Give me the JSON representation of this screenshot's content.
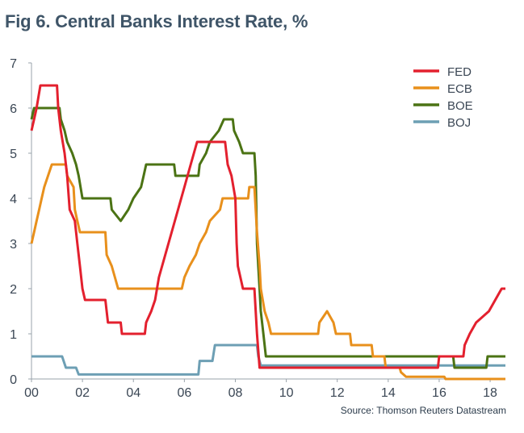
{
  "title": "Fig 6. Central Banks Interest Rate, %",
  "source": "Source: Thomson Reuters Datastream",
  "chart_data": {
    "type": "line",
    "title": "Fig 6. Central Banks Interest Rate, %",
    "xlabel": "",
    "ylabel": "",
    "xlim": [
      2000,
      2018.6
    ],
    "ylim": [
      0,
      7
    ],
    "x_ticks": [
      {
        "v": 2000,
        "label": "00"
      },
      {
        "v": 2002,
        "label": "02"
      },
      {
        "v": 2004,
        "label": "04"
      },
      {
        "v": 2006,
        "label": "06"
      },
      {
        "v": 2008,
        "label": "08"
      },
      {
        "v": 2010,
        "label": "10"
      },
      {
        "v": 2012,
        "label": "12"
      },
      {
        "v": 2014,
        "label": "14"
      },
      {
        "v": 2016,
        "label": "16"
      },
      {
        "v": 2018,
        "label": "18"
      }
    ],
    "y_ticks": [
      0,
      1,
      2,
      3,
      4,
      5,
      6,
      7
    ],
    "grid": false,
    "legend_position": "top-right",
    "series": [
      {
        "name": "FED",
        "color": "#e3202e",
        "points": [
          [
            2000.0,
            5.5
          ],
          [
            2000.1,
            5.75
          ],
          [
            2000.2,
            6.0
          ],
          [
            2000.35,
            6.5
          ],
          [
            2001.0,
            6.5
          ],
          [
            2001.05,
            6.0
          ],
          [
            2001.15,
            5.5
          ],
          [
            2001.3,
            5.0
          ],
          [
            2001.4,
            4.5
          ],
          [
            2001.5,
            3.75
          ],
          [
            2001.7,
            3.5
          ],
          [
            2001.8,
            3.0
          ],
          [
            2001.9,
            2.5
          ],
          [
            2002.0,
            2.0
          ],
          [
            2002.1,
            1.75
          ],
          [
            2002.9,
            1.75
          ],
          [
            2003.0,
            1.25
          ],
          [
            2003.5,
            1.25
          ],
          [
            2003.55,
            1.0
          ],
          [
            2004.45,
            1.0
          ],
          [
            2004.5,
            1.25
          ],
          [
            2004.7,
            1.5
          ],
          [
            2004.85,
            1.75
          ],
          [
            2005.0,
            2.25
          ],
          [
            2005.25,
            2.75
          ],
          [
            2005.5,
            3.25
          ],
          [
            2005.75,
            3.75
          ],
          [
            2006.0,
            4.25
          ],
          [
            2006.25,
            4.75
          ],
          [
            2006.5,
            5.25
          ],
          [
            2007.6,
            5.25
          ],
          [
            2007.7,
            4.75
          ],
          [
            2007.85,
            4.5
          ],
          [
            2008.0,
            4.0
          ],
          [
            2008.05,
            3.0
          ],
          [
            2008.1,
            2.5
          ],
          [
            2008.3,
            2.0
          ],
          [
            2008.75,
            2.0
          ],
          [
            2008.85,
            1.0
          ],
          [
            2008.95,
            0.25
          ],
          [
            2015.95,
            0.25
          ],
          [
            2016.0,
            0.5
          ],
          [
            2016.95,
            0.5
          ],
          [
            2017.0,
            0.75
          ],
          [
            2017.2,
            1.0
          ],
          [
            2017.45,
            1.25
          ],
          [
            2017.95,
            1.5
          ],
          [
            2018.2,
            1.75
          ],
          [
            2018.45,
            2.0
          ],
          [
            2018.6,
            2.0
          ]
        ]
      },
      {
        "name": "ECB",
        "color": "#e8901c",
        "points": [
          [
            2000.0,
            3.0
          ],
          [
            2000.1,
            3.25
          ],
          [
            2000.2,
            3.5
          ],
          [
            2000.3,
            3.75
          ],
          [
            2000.4,
            4.0
          ],
          [
            2000.5,
            4.25
          ],
          [
            2000.8,
            4.75
          ],
          [
            2001.35,
            4.75
          ],
          [
            2001.4,
            4.5
          ],
          [
            2001.65,
            4.25
          ],
          [
            2001.7,
            3.75
          ],
          [
            2001.8,
            3.5
          ],
          [
            2001.9,
            3.25
          ],
          [
            2002.9,
            3.25
          ],
          [
            2002.95,
            2.75
          ],
          [
            2003.15,
            2.5
          ],
          [
            2003.4,
            2.0
          ],
          [
            2005.9,
            2.0
          ],
          [
            2006.0,
            2.25
          ],
          [
            2006.2,
            2.5
          ],
          [
            2006.45,
            2.75
          ],
          [
            2006.6,
            3.0
          ],
          [
            2006.85,
            3.25
          ],
          [
            2007.0,
            3.5
          ],
          [
            2007.4,
            3.75
          ],
          [
            2007.5,
            4.0
          ],
          [
            2008.5,
            4.0
          ],
          [
            2008.55,
            4.25
          ],
          [
            2008.75,
            4.25
          ],
          [
            2008.8,
            3.75
          ],
          [
            2008.85,
            3.25
          ],
          [
            2008.95,
            2.5
          ],
          [
            2009.0,
            2.0
          ],
          [
            2009.15,
            1.5
          ],
          [
            2009.3,
            1.25
          ],
          [
            2009.4,
            1.0
          ],
          [
            2011.25,
            1.0
          ],
          [
            2011.3,
            1.25
          ],
          [
            2011.6,
            1.5
          ],
          [
            2011.85,
            1.25
          ],
          [
            2011.95,
            1.0
          ],
          [
            2012.5,
            1.0
          ],
          [
            2012.55,
            0.75
          ],
          [
            2013.35,
            0.75
          ],
          [
            2013.4,
            0.5
          ],
          [
            2013.85,
            0.5
          ],
          [
            2013.9,
            0.25
          ],
          [
            2014.45,
            0.25
          ],
          [
            2014.5,
            0.15
          ],
          [
            2014.7,
            0.05
          ],
          [
            2016.2,
            0.05
          ],
          [
            2016.25,
            0.0
          ],
          [
            2018.6,
            0.0
          ]
        ]
      },
      {
        "name": "BOE",
        "color": "#4b7314",
        "points": [
          [
            2000.0,
            5.75
          ],
          [
            2000.1,
            6.0
          ],
          [
            2001.1,
            6.0
          ],
          [
            2001.15,
            5.75
          ],
          [
            2001.3,
            5.5
          ],
          [
            2001.4,
            5.25
          ],
          [
            2001.6,
            5.0
          ],
          [
            2001.75,
            4.75
          ],
          [
            2001.85,
            4.5
          ],
          [
            2002.0,
            4.0
          ],
          [
            2003.1,
            4.0
          ],
          [
            2003.15,
            3.75
          ],
          [
            2003.5,
            3.5
          ],
          [
            2003.8,
            3.75
          ],
          [
            2004.0,
            4.0
          ],
          [
            2004.3,
            4.25
          ],
          [
            2004.4,
            4.5
          ],
          [
            2004.5,
            4.75
          ],
          [
            2005.6,
            4.75
          ],
          [
            2005.65,
            4.5
          ],
          [
            2006.55,
            4.5
          ],
          [
            2006.6,
            4.75
          ],
          [
            2006.85,
            5.0
          ],
          [
            2007.0,
            5.25
          ],
          [
            2007.35,
            5.5
          ],
          [
            2007.55,
            5.75
          ],
          [
            2007.9,
            5.75
          ],
          [
            2007.95,
            5.5
          ],
          [
            2008.15,
            5.25
          ],
          [
            2008.3,
            5.0
          ],
          [
            2008.75,
            5.0
          ],
          [
            2008.8,
            4.5
          ],
          [
            2008.85,
            3.0
          ],
          [
            2008.95,
            2.0
          ],
          [
            2009.0,
            1.5
          ],
          [
            2009.1,
            1.0
          ],
          [
            2009.2,
            0.5
          ],
          [
            2016.55,
            0.5
          ],
          [
            2016.6,
            0.25
          ],
          [
            2017.85,
            0.25
          ],
          [
            2017.9,
            0.5
          ],
          [
            2018.6,
            0.5
          ]
        ]
      },
      {
        "name": "BOJ",
        "color": "#6d9fb4",
        "points": [
          [
            2000.0,
            0.5
          ],
          [
            2001.2,
            0.5
          ],
          [
            2001.35,
            0.25
          ],
          [
            2001.75,
            0.25
          ],
          [
            2001.85,
            0.1
          ],
          [
            2006.55,
            0.1
          ],
          [
            2006.6,
            0.4
          ],
          [
            2007.1,
            0.4
          ],
          [
            2007.2,
            0.75
          ],
          [
            2008.85,
            0.75
          ],
          [
            2008.9,
            0.5
          ],
          [
            2009.0,
            0.3
          ],
          [
            2018.6,
            0.3
          ]
        ]
      }
    ]
  }
}
